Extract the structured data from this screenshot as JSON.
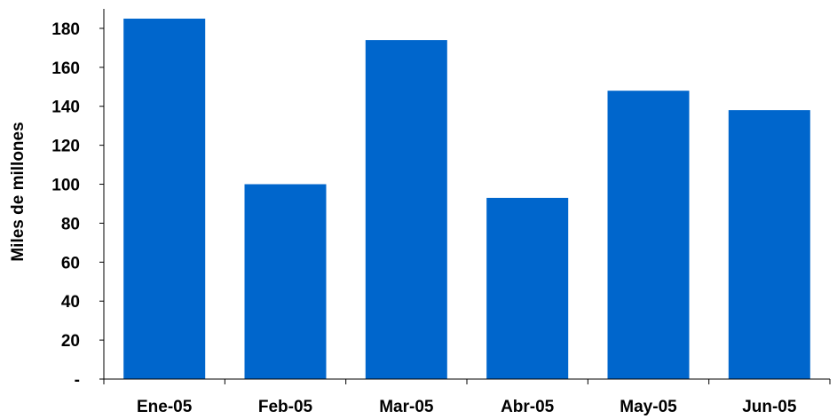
{
  "chart_data": {
    "type": "bar",
    "categories": [
      "Ene-05",
      "Feb-05",
      "Mar-05",
      "Abr-05",
      "May-05",
      "Jun-05"
    ],
    "series": [
      {
        "values": [
          185,
          100,
          174,
          93,
          148,
          138
        ]
      }
    ],
    "title": "",
    "xlabel": "",
    "ylabel": "Miles de millones",
    "ylim": [
      0,
      190
    ],
    "yticks": [
      0,
      20,
      40,
      60,
      80,
      100,
      120,
      140,
      160,
      180
    ],
    "ytick_labels": [
      "-",
      "20",
      "40",
      "60",
      "80",
      "100",
      "120",
      "140",
      "160",
      "180"
    ],
    "grid": false,
    "legend": "none",
    "bar_color": "#0066CC"
  }
}
